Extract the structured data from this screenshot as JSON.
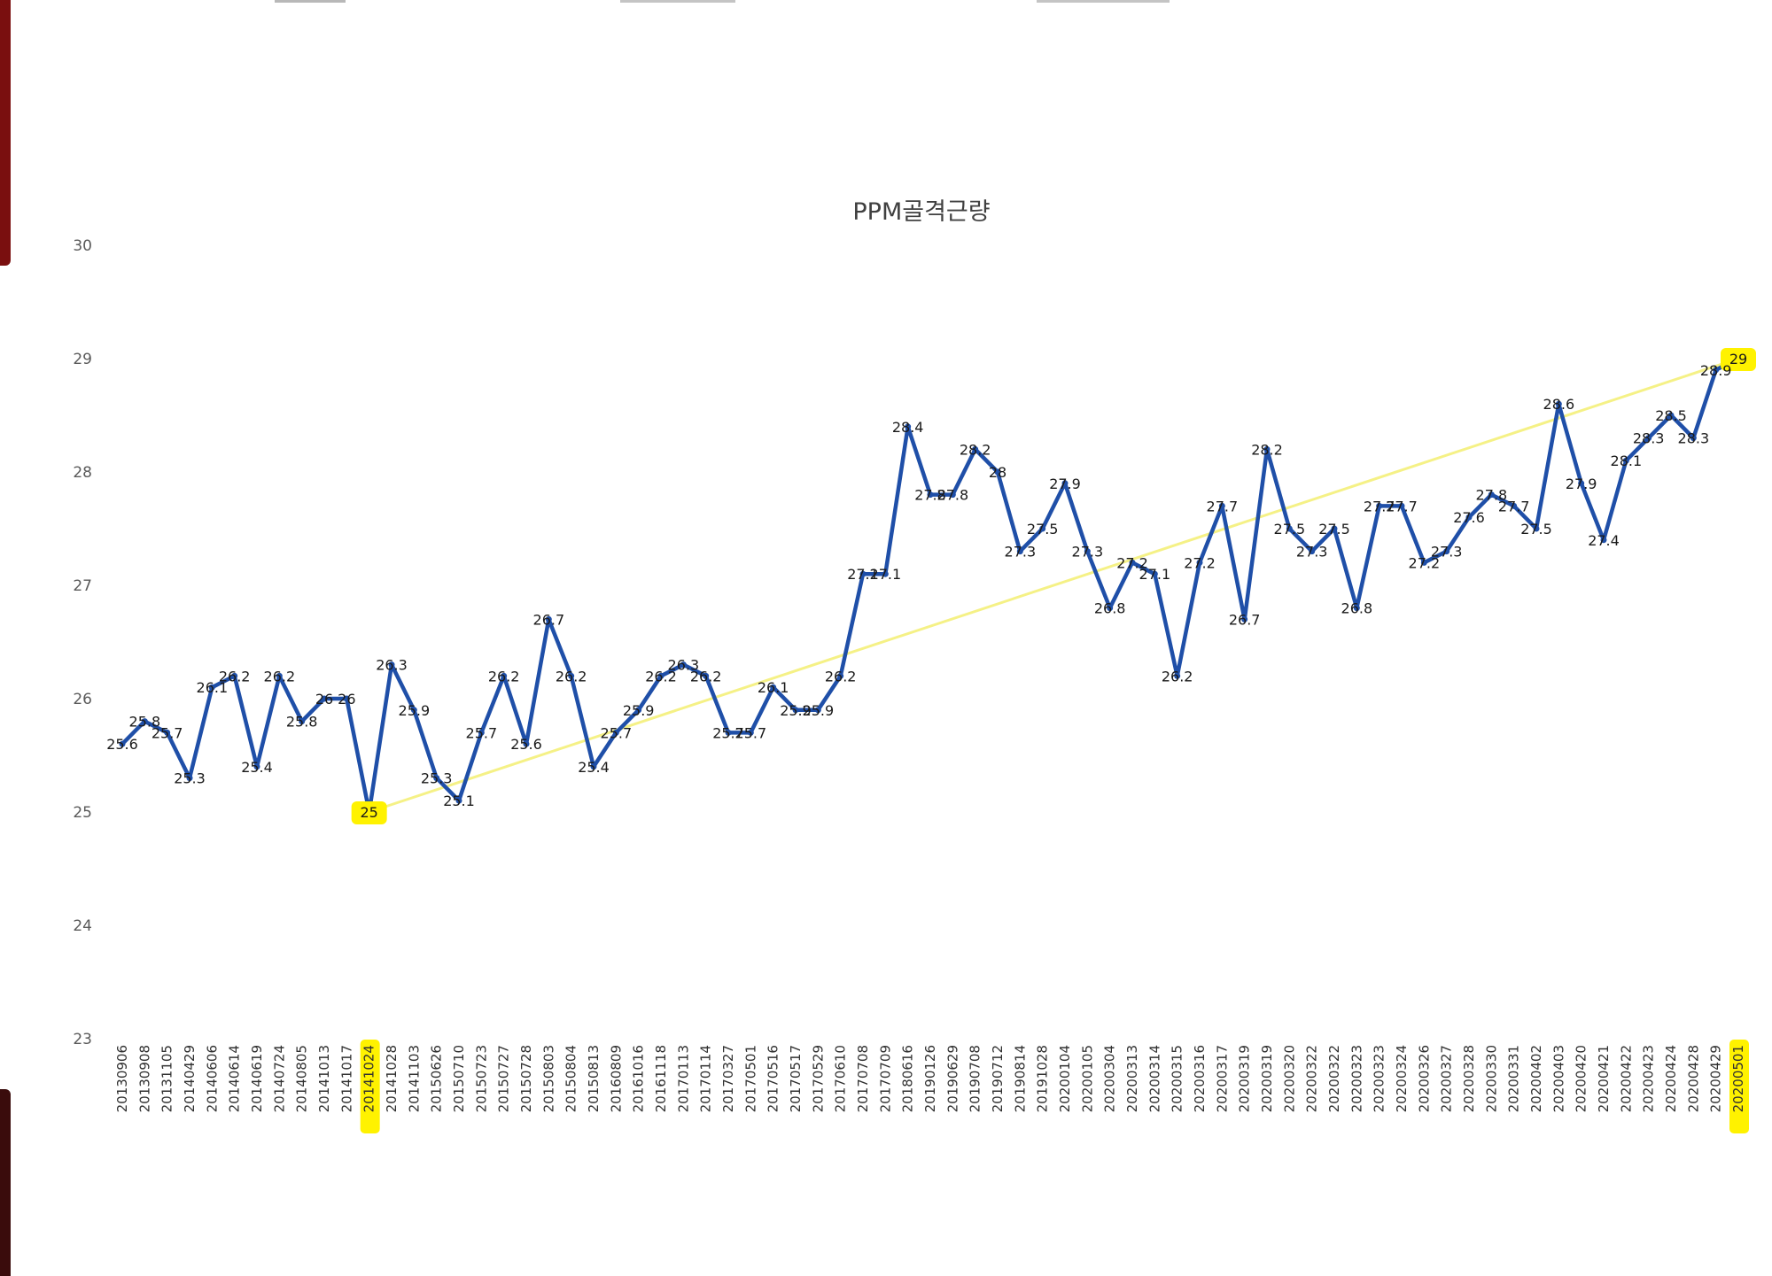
{
  "chart_data": {
    "type": "line",
    "title": "PPM골격근량",
    "xlabel": "",
    "ylabel": "",
    "ylim": [
      23,
      30
    ],
    "yticks": [
      "23",
      "24",
      "25",
      "26",
      "27",
      "28",
      "29",
      "30"
    ],
    "grid": false,
    "legend": "none",
    "categories": [
      "20130906",
      "20130908",
      "20131105",
      "20140429",
      "20140606",
      "20140614",
      "20140619",
      "20140724",
      "20140805",
      "20141013",
      "20141017",
      "20141024",
      "20141028",
      "20141103",
      "20150626",
      "20150710",
      "20150723",
      "20150727",
      "20150728",
      "20150803",
      "20150804",
      "20150813",
      "20160809",
      "20161016",
      "20161118",
      "20170113",
      "20170114",
      "20170327",
      "20170501",
      "20170516",
      "20170517",
      "20170529",
      "20170610",
      "20170708",
      "20170709",
      "20180616",
      "20190126",
      "20190629",
      "20190708",
      "20190712",
      "20190814",
      "20191028",
      "20200104",
      "20200105",
      "20200304",
      "20200313",
      "20200314",
      "20200315",
      "20200316",
      "20200317",
      "20200319",
      "20200319",
      "20200320",
      "20200322",
      "20200322",
      "20200323",
      "20200323",
      "20200324",
      "20200326",
      "20200327",
      "20200328",
      "20200330",
      "20200331",
      "20200402",
      "20200403",
      "20200420",
      "20200421",
      "20200422",
      "20200423",
      "20200424",
      "20200428",
      "20200429",
      "20200501"
    ],
    "series": [
      {
        "values": [
          25.6,
          25.8,
          25.7,
          25.3,
          26.1,
          26.2,
          25.4,
          26.2,
          25.8,
          26,
          26,
          25,
          26.3,
          25.9,
          25.3,
          25.1,
          25.7,
          26.2,
          25.6,
          26.7,
          26.2,
          25.4,
          25.7,
          25.9,
          26.2,
          26.3,
          26.2,
          25.7,
          25.7,
          26.1,
          25.9,
          25.9,
          26.2,
          27.1,
          27.1,
          28.4,
          27.8,
          27.8,
          28.2,
          28,
          27.3,
          27.5,
          27.9,
          27.3,
          26.8,
          27.2,
          27.1,
          26.2,
          27.2,
          27.7,
          26.7,
          28.2,
          27.5,
          27.3,
          27.5,
          26.8,
          27.7,
          27.7,
          27.2,
          27.3,
          27.6,
          27.8,
          27.7,
          27.5,
          28.6,
          27.9,
          27.4,
          28.1,
          28.3,
          28.5,
          28.3,
          28.9,
          29
        ],
        "data_labels": [
          "25.6",
          "25.8",
          "25.7",
          "25.3",
          "26.1",
          "26.2",
          "25.4",
          "26.2",
          "25.8",
          "26",
          "26",
          "25",
          "26.3",
          "25.9",
          "25.3",
          "25.1",
          "25.7",
          "26.2",
          "25.6",
          "26.7",
          "26.2",
          "25.4",
          "25.7",
          "25.9",
          "26.2",
          "26.3",
          "26.2",
          "25.7",
          "25.7",
          "26.1",
          "25.9",
          "25.9",
          "26.2",
          "27.1",
          "27.1",
          "28.4",
          "27.8",
          "27.8",
          "28.2",
          "28",
          "27.3",
          "27.5",
          "27.9",
          "27.3",
          "26.8",
          "27.2",
          "27.1",
          "26.2",
          "27.2",
          "27.7",
          "26.7",
          "28.2",
          "27.5",
          "27.3",
          "27.5",
          "26.8",
          "27.7",
          "27.7",
          "27.2",
          "27.3",
          "27.6",
          "27.8",
          "27.7",
          "27.5",
          "28.6",
          "27.9",
          "27.4",
          "28.1",
          "28.3",
          "28.5",
          "28.3",
          "28.9",
          "29"
        ],
        "color": "#1f4fa8"
      }
    ],
    "annotations": {
      "trend_line": {
        "from_category": "20141024",
        "to_category": "20200501",
        "from_value": 25,
        "to_value": 29,
        "color": "#f4f07a"
      },
      "highlighted_categories": [
        "20141024",
        "20200501"
      ],
      "highlighted_data_labels": [
        "25",
        "29"
      ],
      "highlight_color": "#fff200"
    }
  }
}
